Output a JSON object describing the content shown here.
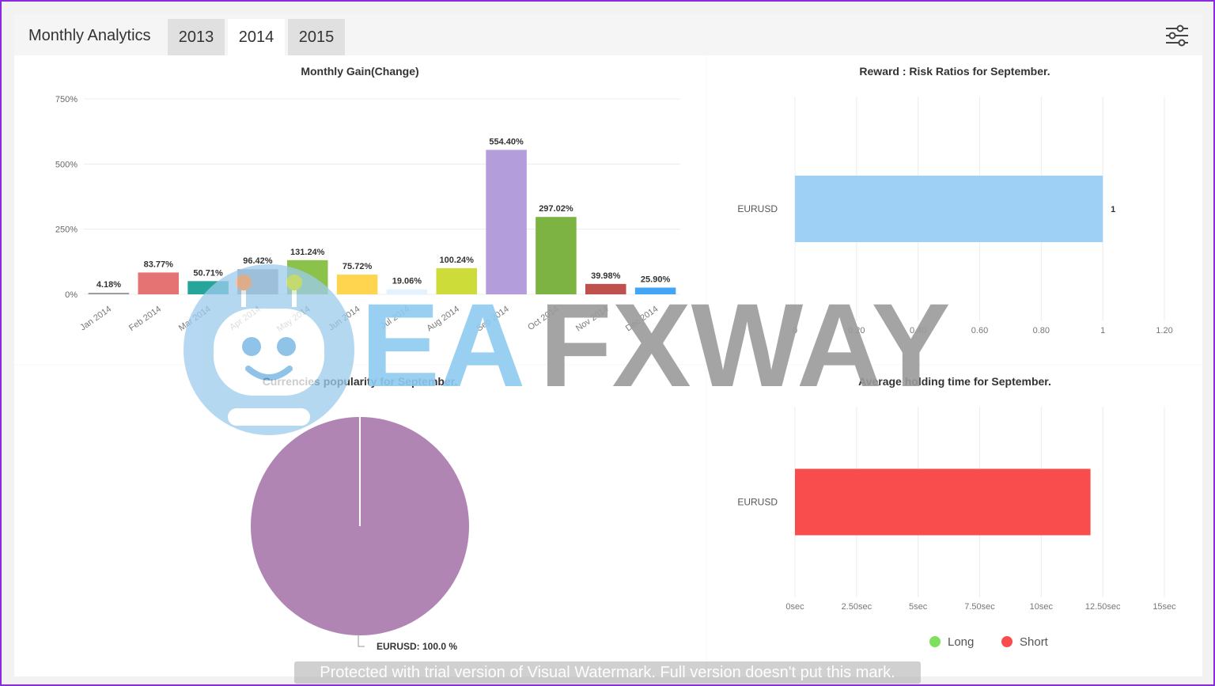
{
  "app": {
    "title": "Monthly Analytics",
    "tabs": [
      {
        "label": "2013",
        "active": false
      },
      {
        "label": "2014",
        "active": true
      },
      {
        "label": "2015",
        "active": false
      }
    ],
    "filter_icon": "sliders-icon"
  },
  "charts": {
    "gain": {
      "title": "Monthly Gain(Change)",
      "chart_data": {
        "type": "bar",
        "categories": [
          "Jan 2014",
          "Feb 2014",
          "Mar 2014",
          "Apr 2014",
          "May 2014",
          "Jun 2014",
          "Jul 2014",
          "Aug 2014",
          "Sep 2014",
          "Oct 2014",
          "Nov 2014",
          "Dec 2014"
        ],
        "values": [
          4.18,
          83.77,
          50.71,
          96.42,
          131.24,
          75.72,
          19.06,
          100.24,
          554.4,
          297.02,
          39.98,
          25.9
        ],
        "labels": [
          "4.18%",
          "83.77%",
          "50.71%",
          "96.42%",
          "131.24%",
          "75.72%",
          "19.06%",
          "100.24%",
          "554.40%",
          "297.02%",
          "39.98%",
          "25.90%"
        ],
        "colors": [
          "#9e9e9e",
          "#e57373",
          "#26a69a",
          "#9e9e9e",
          "#8bc34a",
          "#ffd54f",
          "#e3f2fd",
          "#cddc39",
          "#b39ddb",
          "#7cb342",
          "#c0504d",
          "#42a5f5"
        ],
        "yticks": [
          "750%",
          "500%",
          "250%",
          "0%"
        ],
        "ylim": [
          0,
          750
        ]
      }
    },
    "reward_risk": {
      "title": "Reward : Risk Ratios for September.",
      "chart_data": {
        "type": "bar",
        "orientation": "horizontal",
        "categories": [
          "EURUSD"
        ],
        "values": [
          1
        ],
        "value_labels": [
          "1"
        ],
        "color": "#9ecff5",
        "xticks": [
          "0",
          "0.20",
          "0.40",
          "0.60",
          "0.80",
          "1",
          "1.20"
        ],
        "xlim": [
          0,
          1.2
        ]
      }
    },
    "popularity": {
      "title": "Currencies popularity for September.",
      "chart_data": {
        "type": "pie",
        "slices": [
          {
            "label": "EURUSD: 100.0 %",
            "value": 100.0,
            "color": "#b085b4"
          }
        ]
      }
    },
    "holding": {
      "title": "Average holding time for September.",
      "chart_data": {
        "type": "bar",
        "orientation": "horizontal",
        "categories": [
          "EURUSD"
        ],
        "values": [
          12
        ],
        "color": "#f94c4c",
        "xticks": [
          "0sec",
          "2.50sec",
          "5sec",
          "7.50sec",
          "10sec",
          "12.50sec",
          "15sec"
        ],
        "xlim": [
          0,
          15
        ],
        "legend": [
          {
            "label": "Long",
            "color": "#7ee05d"
          },
          {
            "label": "Short",
            "color": "#f94c4c"
          }
        ]
      }
    }
  },
  "watermark": {
    "logo_text_a": "EA",
    "logo_text_b": "FXWAY",
    "footer": "Protected with trial version of Visual Watermark. Full version doesn't put this mark."
  }
}
